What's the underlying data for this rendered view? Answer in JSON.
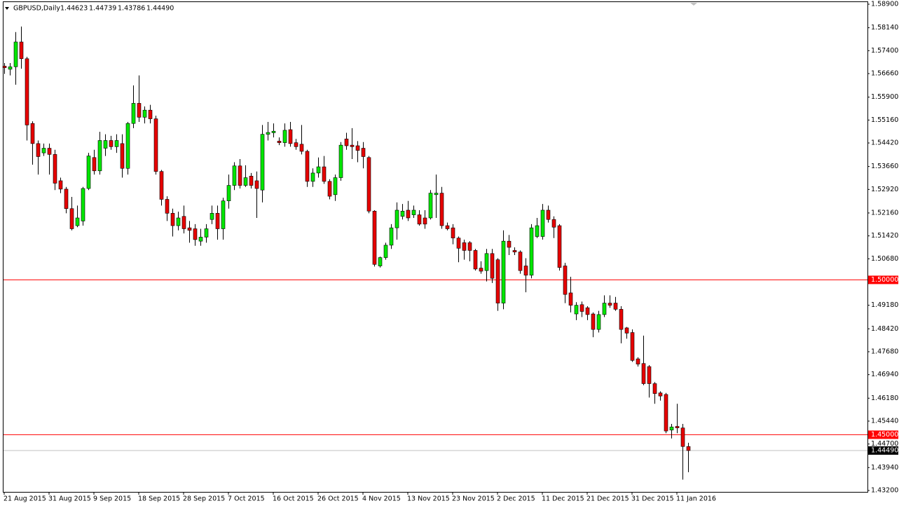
{
  "chart_data": {
    "type": "candlestick",
    "title": "GBPUSD,Daily",
    "info": [
      "1.44623",
      "1.44739",
      "1.43786",
      "1.44490"
    ],
    "categories": [
      "21 Aug 2015",
      null,
      null,
      null,
      null,
      null,
      null,
      null,
      "31 Aug 2015",
      null,
      null,
      null,
      null,
      null,
      null,
      null,
      "9 Sep 2015",
      null,
      null,
      null,
      null,
      null,
      null,
      null,
      "18 Sep 2015",
      null,
      null,
      null,
      null,
      null,
      null,
      null,
      "28 Sep 2015",
      null,
      null,
      null,
      null,
      null,
      null,
      null,
      "7 Oct 2015",
      null,
      null,
      null,
      null,
      null,
      null,
      null,
      "16 Oct 2015",
      null,
      null,
      null,
      null,
      null,
      null,
      null,
      "26 Oct 2015",
      null,
      null,
      null,
      null,
      null,
      null,
      null,
      "4 Nov 2015",
      null,
      null,
      null,
      null,
      null,
      null,
      null,
      "13 Nov 2015",
      null,
      null,
      null,
      null,
      null,
      null,
      null,
      "23 Nov 2015",
      null,
      null,
      null,
      null,
      null,
      null,
      null,
      "2 Dec 2015",
      null,
      null,
      null,
      null,
      null,
      null,
      null,
      "11 Dec 2015",
      null,
      null,
      null,
      null,
      null,
      null,
      null,
      "21 Dec 2015",
      null,
      null,
      null,
      null,
      null,
      null,
      null,
      "31 Dec 2015",
      null,
      null,
      null,
      null,
      null,
      null,
      null,
      "11 Jan 2016",
      null,
      null
    ],
    "open": [
      1.569,
      1.568,
      1.5688,
      1.5768,
      1.5714,
      1.5505,
      1.544,
      1.541,
      1.5425,
      1.5405,
      1.532,
      1.5293,
      1.523,
      1.5175,
      1.519,
      1.5295,
      1.5395,
      1.5352,
      1.5425,
      1.545,
      1.543,
      1.544,
      1.536,
      1.5505,
      1.557,
      1.5525,
      1.5548,
      1.552,
      1.535,
      1.526,
      1.5215,
      1.5175,
      1.5205,
      1.5168,
      1.5165,
      1.5125,
      1.5138,
      1.5195,
      1.5215,
      1.5165,
      1.5255,
      1.5305,
      1.5368,
      1.5305,
      1.5335,
      1.532,
      1.529,
      1.547,
      1.5475,
      1.5448,
      1.5443,
      1.5485,
      1.5443,
      1.5438,
      1.5415,
      1.5318,
      1.5345,
      1.5365,
      1.5318,
      1.5275,
      1.533,
      1.5455,
      1.5435,
      1.5433,
      1.5425,
      1.5395,
      1.5222,
      1.5045,
      1.5072,
      1.5112,
      1.5168,
      1.5205,
      1.5225,
      1.521,
      1.521,
      1.52,
      1.52,
      1.5275,
      1.528,
      1.5175,
      1.5168,
      1.5135,
      1.512,
      1.512,
      1.5095,
      1.5038,
      1.503,
      1.5085,
      1.5065,
      1.4925,
      1.5125,
      1.5095,
      1.509,
      1.5045,
      1.5015,
      1.514,
      1.514,
      1.5225,
      1.5195,
      1.5175,
      1.5045,
      1.4958,
      1.489,
      1.492,
      1.491,
      1.489,
      1.484,
      1.4888,
      1.4925,
      1.4925,
      1.4905,
      1.4845,
      1.483,
      1.4745,
      1.473,
      1.472,
      1.4665,
      1.4635,
      1.463,
      1.4515,
      1.4527,
      1.4522,
      1.4462
    ],
    "high": [
      1.57,
      1.57,
      1.58,
      1.5818,
      1.572,
      1.5512,
      1.545,
      1.544,
      1.544,
      1.542,
      1.533,
      1.53,
      1.5268,
      1.524,
      1.53,
      1.541,
      1.542,
      1.5478,
      1.547,
      1.5465,
      1.547,
      1.547,
      1.551,
      1.5628,
      1.566,
      1.556,
      1.5565,
      1.553,
      1.5355,
      1.527,
      1.523,
      1.522,
      1.524,
      1.519,
      1.518,
      1.5165,
      1.518,
      1.524,
      1.524,
      1.5265,
      1.534,
      1.538,
      1.539,
      1.537,
      1.5345,
      1.535,
      1.55,
      1.551,
      1.5505,
      1.546,
      1.5505,
      1.551,
      1.5455,
      1.55,
      1.542,
      1.536,
      1.5395,
      1.54,
      1.5325,
      1.534,
      1.5445,
      1.5475,
      1.549,
      1.5448,
      1.5445,
      1.54,
      1.5225,
      1.5075,
      1.512,
      1.518,
      1.525,
      1.5245,
      1.5255,
      1.524,
      1.5225,
      1.5225,
      1.529,
      1.534,
      1.53,
      1.5185,
      1.518,
      1.514,
      1.513,
      1.5125,
      1.51,
      1.506,
      1.51,
      1.51,
      1.507,
      1.516,
      1.5145,
      1.5105,
      1.5095,
      1.507,
      1.518,
      1.52,
      1.5245,
      1.524,
      1.5205,
      1.518,
      1.5055,
      1.501,
      1.4928,
      1.493,
      1.4915,
      1.4895,
      1.49,
      1.495,
      1.495,
      1.4945,
      1.4915,
      1.4848,
      1.484,
      1.475,
      1.482,
      1.4725,
      1.467,
      1.464,
      1.4635,
      1.4535,
      1.46,
      1.4535,
      1.4474
    ],
    "low": [
      1.5665,
      1.566,
      1.563,
      1.5682,
      1.545,
      1.5372,
      1.534,
      1.54,
      1.534,
      1.529,
      1.528,
      1.5215,
      1.516,
      1.517,
      1.5175,
      1.529,
      1.534,
      1.534,
      1.54,
      1.542,
      1.541,
      1.533,
      1.534,
      1.549,
      1.551,
      1.5505,
      1.5505,
      1.534,
      1.524,
      1.519,
      1.514,
      1.516,
      1.515,
      1.512,
      1.511,
      1.511,
      1.512,
      1.518,
      1.513,
      1.513,
      1.523,
      1.529,
      1.5295,
      1.53,
      1.5295,
      1.52,
      1.525,
      1.545,
      1.546,
      1.5435,
      1.543,
      1.543,
      1.542,
      1.5405,
      1.53,
      1.53,
      1.533,
      1.531,
      1.526,
      1.5255,
      1.532,
      1.542,
      1.539,
      1.538,
      1.536,
      1.5215,
      1.5043,
      1.504,
      1.5065,
      1.51,
      1.513,
      1.5195,
      1.519,
      1.52,
      1.5175,
      1.5165,
      1.5195,
      1.52,
      1.5165,
      1.516,
      1.5115,
      1.5057,
      1.5065,
      1.506,
      1.503,
      1.502,
      1.4995,
      1.499,
      1.49,
      1.4905,
      1.508,
      1.508,
      1.502,
      1.496,
      1.5005,
      1.5135,
      1.513,
      1.5185,
      1.5135,
      1.503,
      1.4925,
      1.4895,
      1.487,
      1.488,
      1.487,
      1.4815,
      1.483,
      1.488,
      1.491,
      1.49,
      1.4795,
      1.481,
      1.4735,
      1.472,
      1.466,
      1.462,
      1.46,
      1.461,
      1.4505,
      1.4488,
      1.4505,
      1.4355,
      1.4379
    ],
    "close": [
      1.5685,
      1.5688,
      1.5768,
      1.5714,
      1.55,
      1.544,
      1.5398,
      1.5425,
      1.5405,
      1.5312,
      1.5293,
      1.523,
      1.5165,
      1.52,
      1.5295,
      1.54,
      1.5352,
      1.545,
      1.545,
      1.543,
      1.545,
      1.536,
      1.5505,
      1.557,
      1.5525,
      1.5548,
      1.552,
      1.535,
      1.526,
      1.5215,
      1.5175,
      1.52,
      1.5165,
      1.516,
      1.513,
      1.5138,
      1.5165,
      1.5215,
      1.5165,
      1.5255,
      1.5305,
      1.5368,
      1.5305,
      1.533,
      1.5305,
      1.5295,
      1.547,
      1.5476,
      1.548,
      1.5443,
      1.5483,
      1.544,
      1.543,
      1.5415,
      1.5318,
      1.5345,
      1.5365,
      1.5318,
      1.527,
      1.533,
      1.5435,
      1.5433,
      1.543,
      1.5418,
      1.5398,
      1.5222,
      1.505,
      1.5072,
      1.5112,
      1.5168,
      1.5225,
      1.5222,
      1.52,
      1.5225,
      1.518,
      1.518,
      1.528,
      1.528,
      1.5175,
      1.5165,
      1.5135,
      1.5102,
      1.5095,
      1.5095,
      1.5035,
      1.5028,
      1.5085,
      1.5005,
      1.4925,
      1.5125,
      1.5105,
      1.509,
      1.503,
      1.5015,
      1.5168,
      1.5175,
      1.5225,
      1.5195,
      1.517,
      1.504,
      1.4953,
      1.4918,
      1.4918,
      1.4898,
      1.4888,
      1.484,
      1.4888,
      1.4925,
      1.4918,
      1.4905,
      1.484,
      1.4828,
      1.474,
      1.4728,
      1.4665,
      1.4665,
      1.4633,
      1.4625,
      1.4512,
      1.4525,
      1.4522,
      1.4462,
      1.4449
    ],
    "up_color": "#00e600",
    "down_color": "#e60000",
    "ylim": [
      1.432,
      1.589
    ],
    "yticks": [
      {
        "value": 1.589,
        "label": "1.58900"
      },
      {
        "value": 1.5814,
        "label": "1.58140"
      },
      {
        "value": 1.574,
        "label": "1.57400"
      },
      {
        "value": 1.5666,
        "label": "1.56660"
      },
      {
        "value": 1.559,
        "label": "1.55900"
      },
      {
        "value": 1.5516,
        "label": "1.55160"
      },
      {
        "value": 1.5442,
        "label": "1.54420"
      },
      {
        "value": 1.5366,
        "label": "1.53660"
      },
      {
        "value": 1.5292,
        "label": "1.52920"
      },
      {
        "value": 1.5216,
        "label": "1.52160"
      },
      {
        "value": 1.5142,
        "label": "1.51420"
      },
      {
        "value": 1.5068,
        "label": "1.50680"
      },
      {
        "value": 1.4918,
        "label": "1.49180"
      },
      {
        "value": 1.4842,
        "label": "1.48420"
      },
      {
        "value": 1.4768,
        "label": "1.47680"
      },
      {
        "value": 1.4694,
        "label": "1.46940"
      },
      {
        "value": 1.4618,
        "label": "1.46180"
      },
      {
        "value": 1.4544,
        "label": "1.45440"
      },
      {
        "value": 1.447,
        "label": "1.44700"
      },
      {
        "value": 1.4394,
        "label": "1.43940"
      },
      {
        "value": 1.432,
        "label": "1.43200"
      }
    ],
    "hlines": [
      {
        "value": 1.5,
        "label": "1.50000",
        "color": "#ff0000"
      },
      {
        "value": 1.45,
        "label": "1.45000",
        "color": "#ff0000"
      }
    ],
    "current_price": {
      "value": 1.4449,
      "label": "1.44490",
      "color": "#c0c0c0"
    }
  }
}
